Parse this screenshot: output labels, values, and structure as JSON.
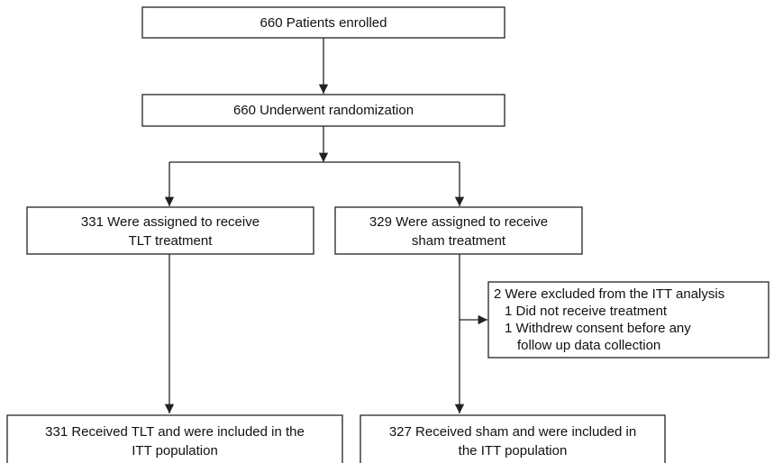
{
  "nodes": [
    {
      "lines": [
        "660 Patients enrolled"
      ]
    },
    {
      "lines": [
        "660 Underwent randomization"
      ]
    },
    {
      "lines": [
        "331 Were assigned to receive",
        "TLT treatment"
      ]
    },
    {
      "lines": [
        "329 Were assigned to receive",
        "sham treatment"
      ]
    },
    {
      "lines": [
        "2 Were excluded from the ITT analysis",
        "1 Did not receive treatment",
        "1 Withdrew consent before any",
        "follow up data collection"
      ]
    },
    {
      "lines": [
        "331 Received TLT and were included in the",
        "ITT population"
      ]
    },
    {
      "lines": [
        "327 Received sham and were included in",
        "the ITT population"
      ]
    }
  ]
}
